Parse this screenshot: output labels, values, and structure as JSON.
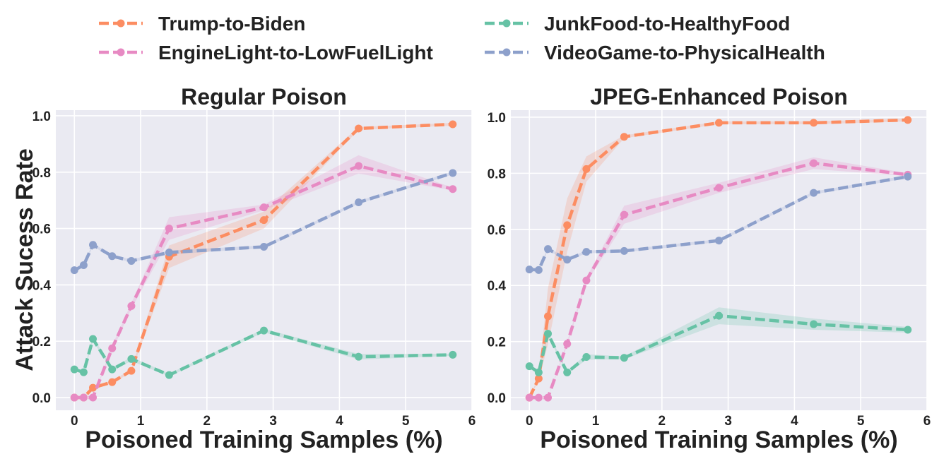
{
  "chart_data": {
    "type": "line",
    "legend": {
      "placement": "top",
      "entries": [
        {
          "name": "Trump-to-Biden",
          "color": "#fc8d62"
        },
        {
          "name": "EngineLight-to-LowFuelLight",
          "color": "#e78ac3"
        },
        {
          "name": "JunkFood-to-HealthyFood",
          "color": "#66c2a5"
        },
        {
          "name": "VideoGame-to-PhysicalHealth",
          "color": "#8da0cb"
        }
      ]
    },
    "ylabel": "Attack Sucess Rate",
    "charts": [
      {
        "title": "Regular Poison",
        "xlabel": "Poisoned Training Samples (%)",
        "xlim": [
          -0.28,
          6.0
        ],
        "ylim": [
          -0.045,
          1.02
        ],
        "xticks": [
          0,
          1,
          2,
          3,
          4,
          5,
          6
        ],
        "yticks": [
          0.0,
          0.2,
          0.4,
          0.6,
          0.8,
          1.0
        ],
        "ytick_labels": [
          "0.0",
          "0.2",
          "0.4",
          "0.6",
          "0.8",
          "1.0"
        ],
        "x": [
          0,
          0.14,
          0.28,
          0.57,
          0.86,
          1.43,
          2.86,
          4.29,
          5.71
        ],
        "series": [
          {
            "name": "Trump-to-Biden",
            "color": "#fc8d62",
            "x": [
              0,
              0.14,
              0.28,
              0.57,
              0.86,
              1.43,
              2.86,
              4.29,
              5.71
            ],
            "values": [
              0.0,
              0.0,
              0.035,
              0.055,
              0.095,
              0.5,
              0.63,
              0.955,
              0.97
            ],
            "lower": [
              0.0,
              0.0,
              0.03,
              0.05,
              0.09,
              0.46,
              0.6,
              0.95,
              0.965
            ],
            "upper": [
              0.0,
              0.0,
              0.04,
              0.06,
              0.1,
              0.54,
              0.66,
              0.96,
              0.975
            ]
          },
          {
            "name": "EngineLight-to-LowFuelLight",
            "color": "#e78ac3",
            "x": [
              0,
              0.14,
              0.28,
              0.57,
              0.86,
              1.43,
              2.86,
              4.29,
              5.71
            ],
            "values": [
              0.0,
              0.0,
              0.0,
              0.175,
              0.325,
              0.6,
              0.675,
              0.822,
              0.74
            ],
            "lower": [
              0.0,
              0.0,
              0.0,
              0.165,
              0.315,
              0.56,
              0.665,
              0.795,
              0.735
            ],
            "upper": [
              0.0,
              0.0,
              0.0,
              0.185,
              0.335,
              0.64,
              0.685,
              0.86,
              0.745
            ]
          },
          {
            "name": "JunkFood-to-HealthyFood",
            "color": "#66c2a5",
            "x": [
              0,
              0.14,
              0.28,
              0.57,
              0.86,
              1.43,
              2.86,
              4.29,
              5.71
            ],
            "values": [
              0.1,
              0.09,
              0.208,
              0.1,
              0.137,
              0.08,
              0.238,
              0.145,
              0.152
            ],
            "lower": [
              0.095,
              0.085,
              0.2,
              0.095,
              0.13,
              0.075,
              0.232,
              0.135,
              0.148
            ],
            "upper": [
              0.105,
              0.095,
              0.216,
              0.105,
              0.144,
              0.085,
              0.244,
              0.155,
              0.156
            ]
          },
          {
            "name": "VideoGame-to-PhysicalHealth",
            "color": "#8da0cb",
            "x": [
              0,
              0.14,
              0.28,
              0.57,
              0.86,
              1.43,
              2.86,
              4.29,
              5.71
            ],
            "values": [
              0.452,
              0.47,
              0.542,
              0.502,
              0.485,
              0.515,
              0.535,
              0.693,
              0.797
            ],
            "lower": [
              0.447,
              0.465,
              0.537,
              0.497,
              0.48,
              0.508,
              0.53,
              0.688,
              0.792
            ],
            "upper": [
              0.457,
              0.475,
              0.547,
              0.507,
              0.49,
              0.522,
              0.54,
              0.698,
              0.802
            ]
          }
        ]
      },
      {
        "title": "JPEG-Enhanced Poison",
        "xlabel": "Poisoned Training Samples (%)",
        "xlim": [
          -0.28,
          6.0
        ],
        "ylim": [
          -0.045,
          1.025
        ],
        "xticks": [
          0,
          1,
          2,
          3,
          4,
          5,
          6
        ],
        "yticks": [
          0.0,
          0.2,
          0.4,
          0.6,
          0.8,
          1.0
        ],
        "ytick_labels": [
          "0.0",
          "0.2",
          "0.4",
          "0.6",
          "0.8",
          "1.0"
        ],
        "series": [
          {
            "name": "Trump-to-Biden",
            "color": "#fc8d62",
            "x": [
              0,
              0.14,
              0.28,
              0.57,
              0.86,
              1.43,
              2.86,
              4.29,
              5.71
            ],
            "values": [
              0.0,
              0.068,
              0.29,
              0.615,
              0.815,
              0.93,
              0.98,
              0.98,
              0.99
            ],
            "lower": [
              0.0,
              0.06,
              0.19,
              0.52,
              0.77,
              0.925,
              0.975,
              0.975,
              0.985
            ],
            "upper": [
              0.0,
              0.076,
              0.39,
              0.71,
              0.86,
              0.935,
              0.985,
              0.985,
              0.995
            ]
          },
          {
            "name": "EngineLight-to-LowFuelLight",
            "color": "#e78ac3",
            "x": [
              0,
              0.14,
              0.28,
              0.57,
              0.86,
              1.43,
              2.86,
              4.29,
              5.71
            ],
            "values": [
              0.0,
              0.0,
              0.0,
              0.192,
              0.418,
              0.652,
              0.748,
              0.836,
              0.795
            ],
            "lower": [
              0.0,
              0.0,
              0.0,
              0.185,
              0.41,
              0.62,
              0.73,
              0.815,
              0.79
            ],
            "upper": [
              0.0,
              0.0,
              0.0,
              0.2,
              0.426,
              0.684,
              0.766,
              0.857,
              0.8
            ]
          },
          {
            "name": "JunkFood-to-HealthyFood",
            "color": "#66c2a5",
            "x": [
              0,
              0.14,
              0.28,
              0.57,
              0.86,
              1.43,
              2.86,
              4.29,
              5.71
            ],
            "values": [
              0.112,
              0.09,
              0.228,
              0.09,
              0.145,
              0.142,
              0.292,
              0.262,
              0.242
            ],
            "lower": [
              0.107,
              0.085,
              0.22,
              0.085,
              0.135,
              0.137,
              0.262,
              0.242,
              0.232
            ],
            "upper": [
              0.117,
              0.095,
              0.236,
              0.095,
              0.155,
              0.147,
              0.322,
              0.282,
              0.252
            ]
          },
          {
            "name": "VideoGame-to-PhysicalHealth",
            "color": "#8da0cb",
            "x": [
              0,
              0.14,
              0.28,
              0.57,
              0.86,
              1.43,
              2.86,
              4.29,
              5.71
            ],
            "values": [
              0.457,
              0.455,
              0.53,
              0.492,
              0.52,
              0.523,
              0.56,
              0.73,
              0.788
            ],
            "lower": [
              0.452,
              0.45,
              0.525,
              0.487,
              0.515,
              0.518,
              0.555,
              0.725,
              0.783
            ],
            "upper": [
              0.462,
              0.46,
              0.535,
              0.497,
              0.525,
              0.528,
              0.565,
              0.735,
              0.793
            ]
          }
        ]
      }
    ]
  }
}
